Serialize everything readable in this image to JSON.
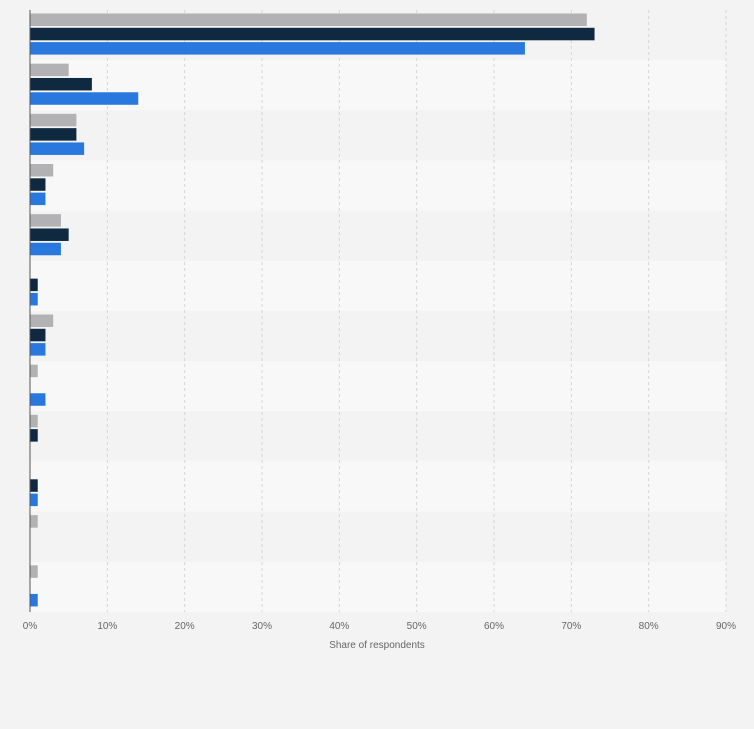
{
  "chart_data": {
    "type": "bar",
    "orientation": "horizontal",
    "xlabel": "Share of respondents",
    "xlim": [
      0,
      90
    ],
    "x_ticks": [
      "0%",
      "10%",
      "20%",
      "30%",
      "40%",
      "50%",
      "60%",
      "70%",
      "80%",
      "90%"
    ],
    "grid": true,
    "category_count": 12,
    "series": [
      {
        "color": "#b2b2b4",
        "values": [
          72,
          5,
          6,
          3,
          4,
          null,
          3,
          1,
          1,
          null,
          1,
          1
        ]
      },
      {
        "color": "#0f2940",
        "values": [
          73,
          8,
          6,
          2,
          5,
          1,
          2,
          null,
          1,
          1,
          null,
          null
        ]
      },
      {
        "color": "#2878de",
        "values": [
          64,
          14,
          7,
          2,
          4,
          1,
          2,
          2,
          null,
          1,
          null,
          1
        ]
      }
    ]
  }
}
